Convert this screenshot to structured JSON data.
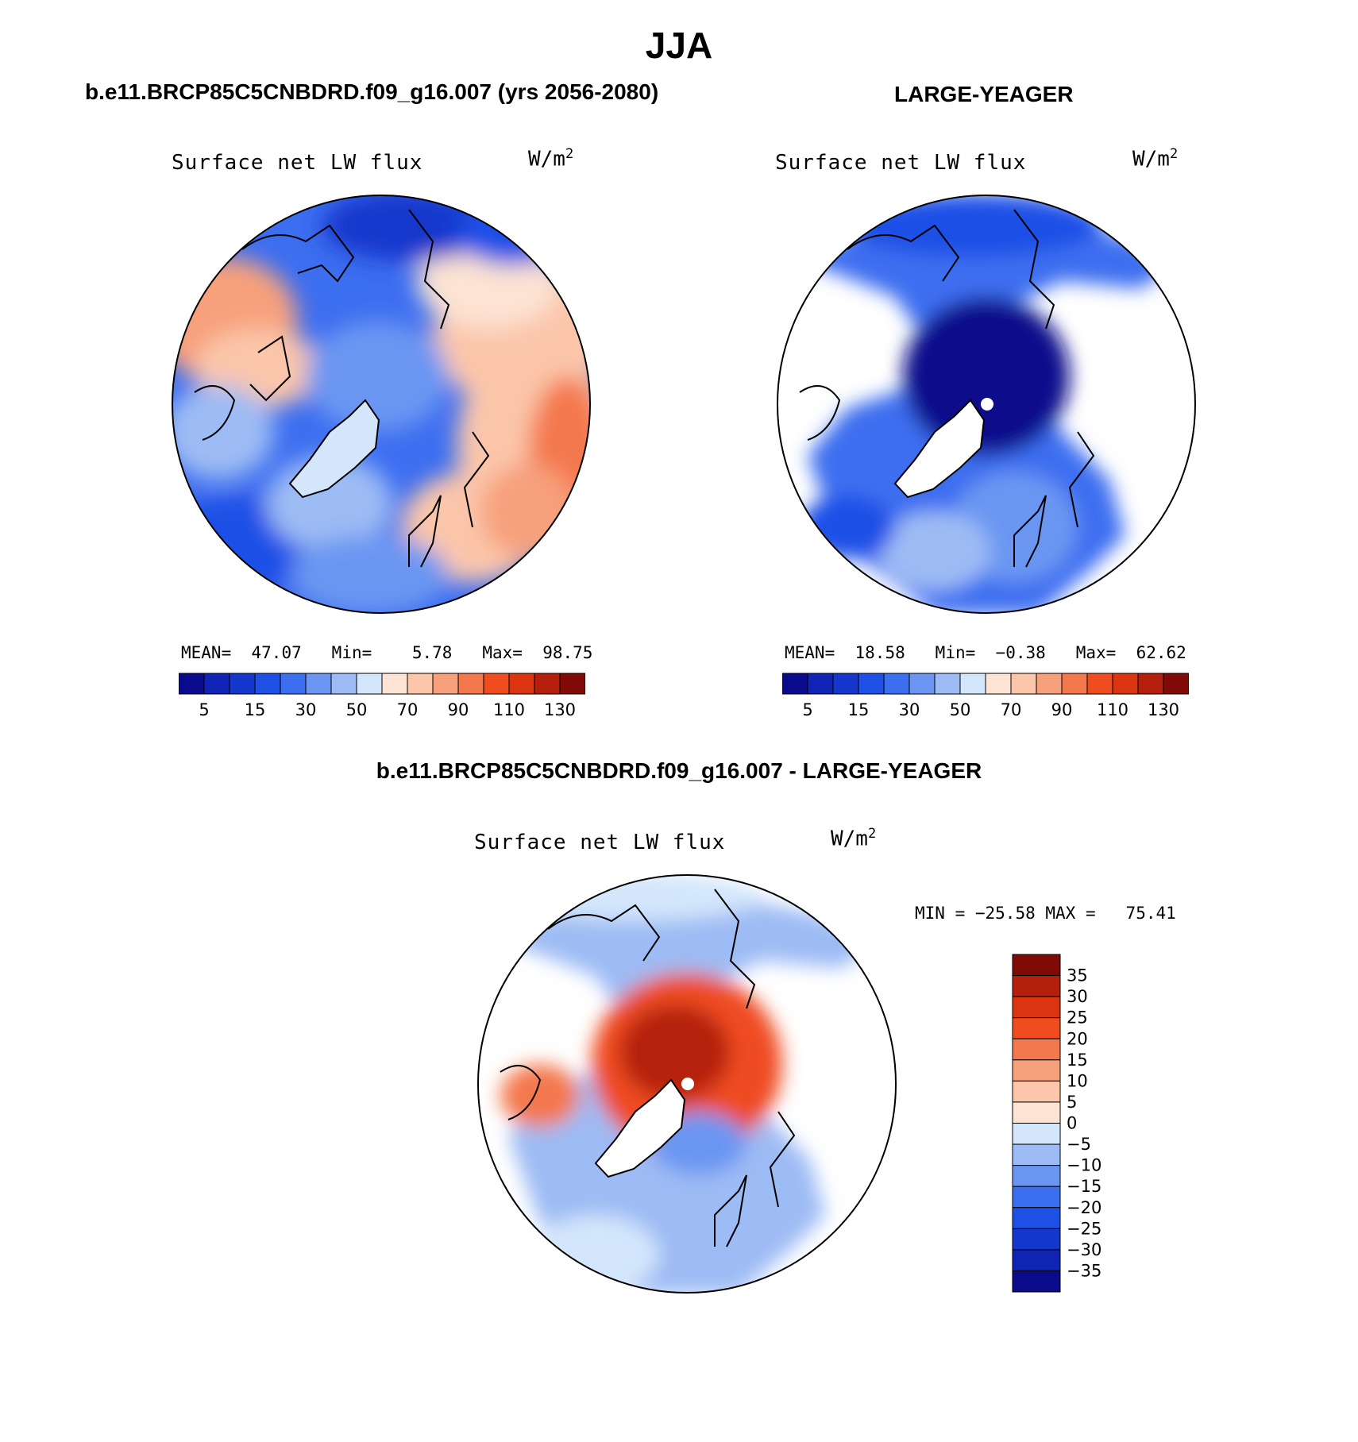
{
  "main_title": "JJA",
  "bottom_panel_title": "b.e11.BRCP85C5CNBDRD.f09_g16.007 - LARGE-YEAGER",
  "colors": {
    "full_scale": [
      "#0a0a8c",
      "#0f23b4",
      "#1637cc",
      "#1f50e6",
      "#3c6ef0",
      "#6a96f2",
      "#9dbbf4",
      "#d3e6fb",
      "#fde3d3",
      "#fbc6aa",
      "#f7a07c",
      "#f4784e",
      "#ef4c20",
      "#db3410",
      "#b5200c",
      "#800a06"
    ],
    "diff_scale": [
      "#0a0a8c",
      "#0f23b4",
      "#1637cc",
      "#1f50e6",
      "#3c6ef0",
      "#6a96f2",
      "#9dbbf4",
      "#d3e6fb",
      "#fde3d3",
      "#fbc6aa",
      "#f7a07c",
      "#f4784e",
      "#ef4c20",
      "#db3410",
      "#b5200c",
      "#800a06"
    ]
  },
  "chart_data": [
    {
      "type": "heatmap",
      "projection": "north-polar-stereographic",
      "title": "b.e11.BRCP85C5CNBDRD.f09_g16.007 (yrs 2056-2080)",
      "variable": "Surface net LW flux",
      "units": "W/m",
      "units_exponent": "2",
      "stats": {
        "mean_label": "MEAN=",
        "mean": "47.07",
        "min_label": "Min=",
        "min": "5.78",
        "max_label": "Max=",
        "max": "98.75"
      },
      "colorbar_ticks": [
        "5",
        "15",
        "30",
        "50",
        "70",
        "90",
        "110",
        "130"
      ]
    },
    {
      "type": "heatmap",
      "projection": "north-polar-stereographic",
      "title": "LARGE-YEAGER",
      "variable": "Surface net LW flux",
      "units": "W/m",
      "units_exponent": "2",
      "stats": {
        "mean_label": "MEAN=",
        "mean": "18.58",
        "min_label": "Min=",
        "min": "−0.38",
        "max_label": "Max=",
        "max": "62.62"
      },
      "colorbar_ticks": [
        "5",
        "15",
        "30",
        "50",
        "70",
        "90",
        "110",
        "130"
      ]
    },
    {
      "type": "heatmap",
      "projection": "north-polar-stereographic",
      "title": "b.e11.BRCP85C5CNBDRD.f09_g16.007 - LARGE-YEAGER",
      "variable": "Surface net LW flux",
      "units": "W/m",
      "units_exponent": "2",
      "stats": {
        "min_label": "MIN =",
        "min": "−25.58",
        "max_label": "MAX =",
        "max": "75.41"
      },
      "colorbar_ticks": [
        "35",
        "30",
        "25",
        "20",
        "15",
        "10",
        "5",
        "0",
        "−5",
        "−10",
        "−15",
        "−20",
        "−25",
        "−30",
        "−35"
      ]
    }
  ]
}
